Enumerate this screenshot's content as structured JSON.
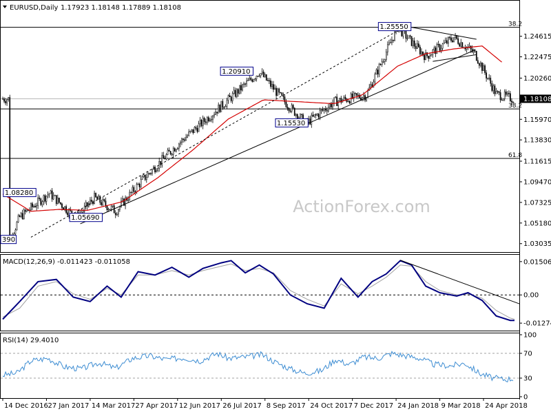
{
  "header": {
    "symbol": "EURUSD,Daily",
    "ohlc": "1.17923 1.18148 1.17889 1.18108"
  },
  "watermark": "ActionForex.com",
  "chart_data": [
    {
      "type": "candlestick",
      "panel": "price",
      "ylim": [
        1.023,
        1.281
      ],
      "y_ticks": [
        "1.24615",
        "1.22475",
        "1.20260",
        "1.18108",
        "1.15970",
        "1.13830",
        "1.11615",
        "1.09470",
        "1.07325",
        "1.05180",
        "1.03035"
      ],
      "y_tick_values": [
        1.24615,
        1.22475,
        1.2026,
        1.18108,
        1.1597,
        1.1383,
        1.11615,
        1.0947,
        1.07325,
        1.0518,
        1.03035
      ],
      "current_price_label": "1.18108",
      "current_price": 1.18108,
      "x_ticks": [
        "14 Dec 2016",
        "27 Jan 2017",
        "14 Mar 2017",
        "27 Apr 2017",
        "12 Jun 2017",
        "26 Jul 2017",
        "8 Sep 2017",
        "24 Oct 2017",
        "7 Dec 2017",
        "24 Jan 2018",
        "9 Mar 2018",
        "24 Apr 2018"
      ],
      "x_tick_positions": [
        0,
        31,
        62,
        93,
        124,
        155,
        186,
        217,
        248,
        279,
        310,
        341
      ],
      "bar_count": 363,
      "key_points": [
        {
          "x": 5,
          "y": 1.034
        },
        {
          "x": 12,
          "y": 1.058
        },
        {
          "x": 33,
          "y": 1.0828
        },
        {
          "x": 52,
          "y": 1.0569
        },
        {
          "x": 65,
          "y": 1.078
        },
        {
          "x": 80,
          "y": 1.064
        },
        {
          "x": 100,
          "y": 1.098
        },
        {
          "x": 125,
          "y": 1.135
        },
        {
          "x": 160,
          "y": 1.18
        },
        {
          "x": 182,
          "y": 1.2091
        },
        {
          "x": 200,
          "y": 1.178
        },
        {
          "x": 215,
          "y": 1.1553
        },
        {
          "x": 235,
          "y": 1.178
        },
        {
          "x": 258,
          "y": 1.185
        },
        {
          "x": 280,
          "y": 1.2555
        },
        {
          "x": 300,
          "y": 1.225
        },
        {
          "x": 320,
          "y": 1.245
        },
        {
          "x": 335,
          "y": 1.228
        },
        {
          "x": 350,
          "y": 1.186
        },
        {
          "x": 362,
          "y": 1.181
        }
      ],
      "labels": [
        {
          "text": "1.25550",
          "x": 278,
          "y": 1.2555
        },
        {
          "text": "1.20910",
          "x": 166,
          "y": 1.2091
        },
        {
          "text": "1.15530",
          "x": 205,
          "y": 1.1553
        },
        {
          "text": "1.08280",
          "x": 12,
          "y": 1.0828
        },
        {
          "text": "1.05690",
          "x": 59,
          "y": 1.0569
        },
        {
          "text": "390",
          "x": 1,
          "y": 1.034
        }
      ],
      "fib_levels": [
        {
          "label": "38.2",
          "y": 1.2555
        },
        {
          "label": "38.2",
          "y": 1.1705
        },
        {
          "label": "61.8",
          "y": 1.119
        }
      ],
      "trendlines": [
        {
          "x1": 20,
          "y1": 1.037,
          "x2": 290,
          "y2": 1.26
        },
        {
          "x1": 55,
          "y1": 1.051,
          "x2": 335,
          "y2": 1.232
        },
        {
          "x1": 290,
          "y1": 1.2555,
          "x2": 336,
          "y2": 1.243
        },
        {
          "x1": 305,
          "y1": 1.22,
          "x2": 336,
          "y2": 1.227
        }
      ],
      "moving_average": [
        {
          "x": 0,
          "y": 1.082
        },
        {
          "x": 20,
          "y": 1.064
        },
        {
          "x": 40,
          "y": 1.066
        },
        {
          "x": 60,
          "y": 1.065
        },
        {
          "x": 85,
          "y": 1.074
        },
        {
          "x": 110,
          "y": 1.099
        },
        {
          "x": 135,
          "y": 1.128
        },
        {
          "x": 160,
          "y": 1.16
        },
        {
          "x": 185,
          "y": 1.18
        },
        {
          "x": 210,
          "y": 1.178
        },
        {
          "x": 235,
          "y": 1.176
        },
        {
          "x": 255,
          "y": 1.185
        },
        {
          "x": 280,
          "y": 1.215
        },
        {
          "x": 300,
          "y": 1.228
        },
        {
          "x": 320,
          "y": 1.233
        },
        {
          "x": 340,
          "y": 1.236
        },
        {
          "x": 355,
          "y": 1.218
        }
      ]
    },
    {
      "type": "line",
      "panel": "MACD",
      "title": "MACD(12,26,9) -0.011423 -0.011058",
      "ylim": [
        -0.0155,
        0.0175
      ],
      "y_ticks": [
        "0.015063",
        "0.00",
        "-0.012743"
      ],
      "y_tick_values": [
        0.015063,
        0,
        -0.012743
      ],
      "series": [
        {
          "points": [
            [
              0,
              -0.011
            ],
            [
              12,
              -0.003
            ],
            [
              25,
              0.006
            ],
            [
              38,
              0.007
            ],
            [
              50,
              -0.001
            ],
            [
              62,
              -0.003
            ],
            [
              74,
              0.004
            ],
            [
              84,
              -0.001
            ],
            [
              96,
              0.0105
            ],
            [
              108,
              0.009
            ],
            [
              120,
              0.0125
            ],
            [
              132,
              0.008
            ],
            [
              142,
              0.012
            ],
            [
              155,
              0.0145
            ],
            [
              162,
              0.0155
            ],
            [
              172,
              0.01
            ],
            [
              182,
              0.0135
            ],
            [
              192,
              0.0095
            ],
            [
              204,
              0.0
            ],
            [
              216,
              -0.004
            ],
            [
              228,
              -0.006
            ],
            [
              240,
              0.0075
            ],
            [
              252,
              -0.001
            ],
            [
              262,
              0.006
            ],
            [
              272,
              0.0095
            ],
            [
              282,
              0.0155
            ],
            [
              290,
              0.0135
            ],
            [
              300,
              0.004
            ],
            [
              310,
              0.001
            ],
            [
              322,
              -0.0005
            ],
            [
              330,
              0.001
            ],
            [
              340,
              -0.0025
            ],
            [
              350,
              -0.0095
            ],
            [
              360,
              -0.0115
            ],
            [
              363,
              -0.0115
            ]
          ]
        },
        {
          "points": [
            [
              0,
              -0.01
            ],
            [
              12,
              -0.006
            ],
            [
              25,
              0.004
            ],
            [
              38,
              0.006
            ],
            [
              50,
              0.0005
            ],
            [
              62,
              -0.002
            ],
            [
              74,
              0.003
            ],
            [
              84,
              0.0
            ],
            [
              96,
              0.009
            ],
            [
              108,
              0.009
            ],
            [
              120,
              0.011
            ],
            [
              132,
              0.009
            ],
            [
              142,
              0.011
            ],
            [
              155,
              0.013
            ],
            [
              162,
              0.014
            ],
            [
              172,
              0.011
            ],
            [
              182,
              0.012
            ],
            [
              192,
              0.01
            ],
            [
              204,
              0.002
            ],
            [
              216,
              -0.002
            ],
            [
              228,
              -0.005
            ],
            [
              240,
              0.005
            ],
            [
              252,
              0.0005
            ],
            [
              262,
              0.004
            ],
            [
              272,
              0.008
            ],
            [
              282,
              0.0135
            ],
            [
              290,
              0.013
            ],
            [
              300,
              0.006
            ],
            [
              310,
              0.002
            ],
            [
              322,
              0.0
            ],
            [
              330,
              0.0005
            ],
            [
              340,
              -0.0015
            ],
            [
              350,
              -0.007
            ],
            [
              360,
              -0.0105
            ],
            [
              363,
              -0.011
            ]
          ]
        }
      ],
      "trendlines": [
        {
          "x1": 282,
          "y1": 0.0157,
          "x2": 363,
          "y2": -0.004
        }
      ]
    },
    {
      "type": "line",
      "panel": "RSI",
      "title": "RSI(14) 29.4010",
      "ylim": [
        0,
        100
      ],
      "y_ticks": [
        "100",
        "70",
        "30",
        "0"
      ],
      "y_tick_values": [
        100,
        70,
        30,
        0
      ],
      "series": [
        {
          "points": [
            [
              0,
              35
            ],
            [
              10,
              38
            ],
            [
              20,
              58
            ],
            [
              32,
              62
            ],
            [
              44,
              48
            ],
            [
              56,
              45
            ],
            [
              68,
              55
            ],
            [
              80,
              46
            ],
            [
              92,
              62
            ],
            [
              104,
              66
            ],
            [
              116,
              60
            ],
            [
              128,
              63
            ],
            [
              140,
              58
            ],
            [
              152,
              70
            ],
            [
              160,
              62
            ],
            [
              172,
              64
            ],
            [
              184,
              68
            ],
            [
              194,
              55
            ],
            [
              204,
              45
            ],
            [
              214,
              38
            ],
            [
              226,
              42
            ],
            [
              236,
              60
            ],
            [
              246,
              52
            ],
            [
              256,
              64
            ],
            [
              266,
              62
            ],
            [
              276,
              70
            ],
            [
              286,
              66
            ],
            [
              296,
              62
            ],
            [
              306,
              52
            ],
            [
              318,
              50
            ],
            [
              328,
              54
            ],
            [
              338,
              38
            ],
            [
              348,
              30
            ],
            [
              356,
              28
            ],
            [
              362,
              29.4
            ]
          ]
        }
      ]
    }
  ]
}
